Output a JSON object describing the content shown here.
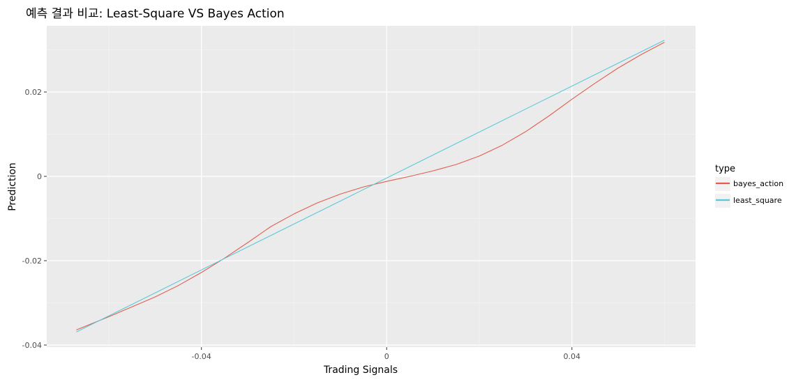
{
  "chart_data": {
    "type": "line",
    "title": "예측 결과 비교: Least-Square VS Bayes Action",
    "xlabel": "Trading Signals",
    "ylabel": "Prediction",
    "xlim": [
      -0.0734,
      0.0667
    ],
    "ylim": [
      -0.0405,
      0.0357
    ],
    "x_ticks": [
      -0.04,
      0,
      0.04
    ],
    "x_tick_labels": [
      "-0.04",
      "0",
      "0.04"
    ],
    "y_ticks": [
      -0.04,
      -0.02,
      0,
      0.02
    ],
    "y_tick_labels": [
      "-0.04",
      "-0.02",
      "0",
      "0.02"
    ],
    "grid": true,
    "legend_position": "right",
    "legend_title": "type",
    "series": [
      {
        "name": "bayes_action",
        "color": "#E15E4F",
        "x": [
          -0.067,
          -0.06,
          -0.05,
          -0.045,
          -0.04,
          -0.035,
          -0.03,
          -0.025,
          -0.02,
          -0.015,
          -0.01,
          -0.005,
          0,
          0.005,
          0.01,
          0.015,
          0.02,
          0.025,
          0.03,
          0.035,
          0.04,
          0.045,
          0.05,
          0.055,
          0.06
        ],
        "y": [
          -0.0364,
          -0.0333,
          -0.0286,
          -0.0259,
          -0.0228,
          -0.0194,
          -0.0157,
          -0.0119,
          -0.0089,
          -0.0063,
          -0.0042,
          -0.0025,
          -0.0012,
          0.0,
          0.0013,
          0.0028,
          0.0048,
          0.0074,
          0.0106,
          0.0143,
          0.0183,
          0.0221,
          0.0257,
          0.0289,
          0.0318
        ]
      },
      {
        "name": "least_square",
        "color": "#5BC8D9",
        "x": [
          -0.067,
          0.06
        ],
        "y": [
          -0.0369,
          0.0323
        ]
      }
    ]
  }
}
